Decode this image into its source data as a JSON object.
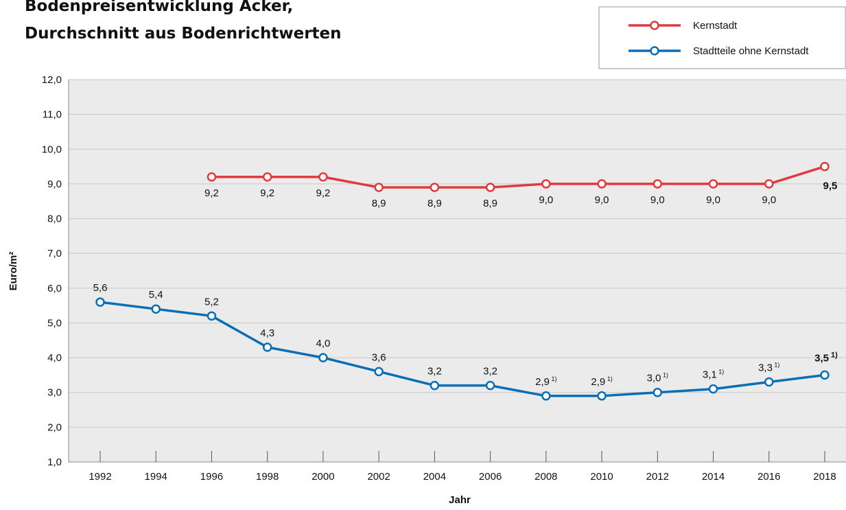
{
  "chart_data": {
    "type": "line",
    "title": [
      "Bodenpreisentwicklung Acker,",
      "Durchschnitt aus Bodenrichtwerten"
    ],
    "xlabel": "Jahr",
    "ylabel": "Euro/m²",
    "categories": [
      "1992",
      "1994",
      "1996",
      "1998",
      "2000",
      "2002",
      "2004",
      "2006",
      "2008",
      "2010",
      "2012",
      "2014",
      "2016",
      "2018"
    ],
    "series": [
      {
        "name": "Kernstadt",
        "color": "#e0393e",
        "values": [
          null,
          null,
          9.2,
          9.2,
          9.2,
          8.9,
          8.9,
          8.9,
          9.0,
          9.0,
          9.0,
          9.0,
          9.0,
          9.5
        ],
        "value_labels": [
          null,
          null,
          "9,2",
          "9,2",
          "9,2",
          "8,9",
          "8,9",
          "8,9",
          "9,0",
          "9,0",
          "9,0",
          "9,0",
          "9,0",
          "9,5"
        ]
      },
      {
        "name": "Stadtteile ohne Kernstadt",
        "color": "#0a6eb4",
        "values": [
          5.6,
          5.4,
          5.2,
          4.3,
          4.0,
          3.6,
          3.2,
          3.2,
          2.9,
          2.9,
          3.0,
          3.1,
          3.3,
          3.5
        ],
        "value_labels": [
          "5,6",
          "5,4",
          "5,2",
          "4,3",
          "4,0",
          "3,6",
          "3,2",
          "3,2",
          "2,9 1)",
          "2,9 1)",
          "3,0 1)",
          "3,1 1)",
          "3,3 1)",
          "3,5 1)"
        ]
      }
    ],
    "ylim": [
      1,
      12
    ],
    "yticks": [
      {
        "value": 1,
        "label": "1,0"
      },
      {
        "value": 2,
        "label": "2,0"
      },
      {
        "value": 3,
        "label": "3,0"
      },
      {
        "value": 4,
        "label": "4,0"
      },
      {
        "value": 5,
        "label": "5,0"
      },
      {
        "value": 6,
        "label": "6,0"
      },
      {
        "value": 7,
        "label": "7,0"
      },
      {
        "value": 8,
        "label": "8,0"
      },
      {
        "value": 9,
        "label": "9,0"
      },
      {
        "value": 10,
        "label": "10,0"
      },
      {
        "value": 11,
        "label": "11,0"
      },
      {
        "value": 12,
        "label": "12,0"
      }
    ],
    "grid": true,
    "legend": "upper right"
  }
}
